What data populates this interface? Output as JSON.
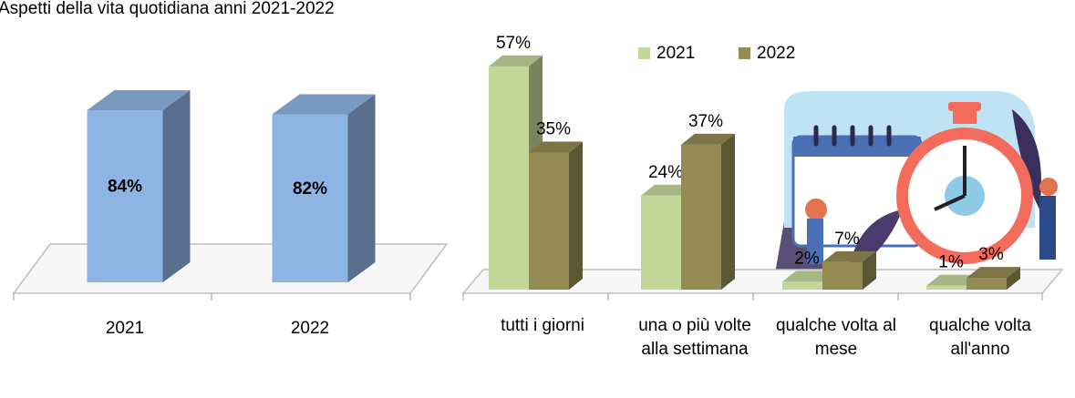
{
  "chart_data": [
    {
      "type": "bar3d",
      "title": "Aspetti della vita quotidiana anni 2021-2022",
      "categories": [
        "2021",
        "2022"
      ],
      "values": [
        84,
        82
      ],
      "value_labels": [
        "84%",
        "82%"
      ],
      "color": "#8eb4e3"
    },
    {
      "type": "bar3d-grouped",
      "categories": [
        "tutti  i giorni",
        "una o più volte alla settimana",
        "qualche volta al mese",
        "qualche volta all'anno"
      ],
      "series": [
        {
          "name": "2021",
          "color": "#c4d79b",
          "values": [
            57,
            24,
            2,
            1
          ],
          "value_labels": [
            "57%",
            "24%",
            "2%",
            "1%"
          ]
        },
        {
          "name": "2022",
          "color": "#948a54",
          "values": [
            35,
            37,
            7,
            3
          ],
          "value_labels": [
            "35%",
            "37%",
            "7%",
            "3%"
          ]
        }
      ],
      "legend": "top"
    }
  ]
}
